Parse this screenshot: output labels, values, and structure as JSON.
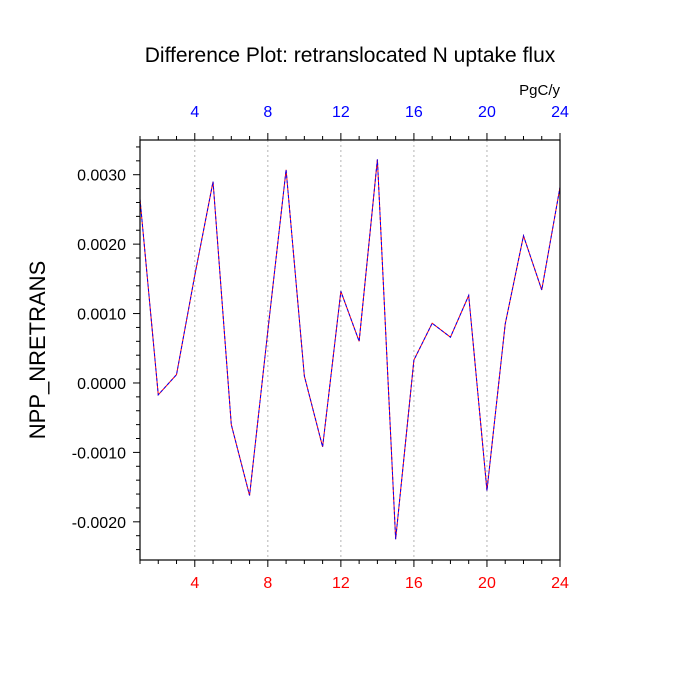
{
  "chart_data": {
    "type": "line",
    "title": "Difference Plot: retranslocated N uptake flux",
    "units": "PgC/y",
    "ylabel": "NPP_NRETRANS",
    "xlabel": "",
    "xlim": [
      1,
      24
    ],
    "ylim": [
      -0.00255,
      0.0035
    ],
    "x_ticks": [
      4,
      8,
      12,
      16,
      20,
      24
    ],
    "x_tick_labels": [
      "4",
      "8",
      "12",
      "16",
      "20",
      "24"
    ],
    "y_ticks": [
      -0.002,
      -0.001,
      0.0,
      0.001,
      0.002,
      0.003
    ],
    "y_tick_labels": [
      "-0.0020",
      "-0.0010",
      "0.0000",
      "0.0010",
      "0.0020",
      "0.0030"
    ],
    "grid": "vertical dotted lines at labeled x ticks",
    "colors": {
      "bottom_tick_labels": "#ff0000",
      "top_tick_labels": "#0000ff",
      "series_red": "#ff0000",
      "series_blue": "#0000ff"
    },
    "x": [
      1,
      2,
      3,
      4,
      5,
      6,
      7,
      8,
      9,
      10,
      11,
      12,
      13,
      14,
      15,
      16,
      17,
      18,
      19,
      20,
      21,
      22,
      23,
      24
    ],
    "series": [
      {
        "values": [
          0.00265,
          -0.00017,
          0.00012,
          0.00155,
          0.0029,
          -0.0006,
          -0.00162,
          0.00075,
          0.00307,
          0.0001,
          -0.00092,
          0.00132,
          0.0006,
          0.00322,
          -0.00225,
          0.00033,
          0.00086,
          0.00066,
          0.00126,
          -0.00155,
          0.00085,
          0.00212,
          0.00134,
          0.00282
        ],
        "color": "#ff0000",
        "style": "solid"
      },
      {
        "values": [
          0.00265,
          -0.00017,
          0.00012,
          0.00155,
          0.0029,
          -0.0006,
          -0.00162,
          0.00075,
          0.00307,
          0.0001,
          -0.00092,
          0.00132,
          0.0006,
          0.00322,
          -0.00225,
          0.00033,
          0.00086,
          0.00066,
          0.00126,
          -0.00155,
          0.00085,
          0.00212,
          0.00134,
          0.00282
        ],
        "color": "#0000ff",
        "style": "dashed"
      }
    ]
  }
}
